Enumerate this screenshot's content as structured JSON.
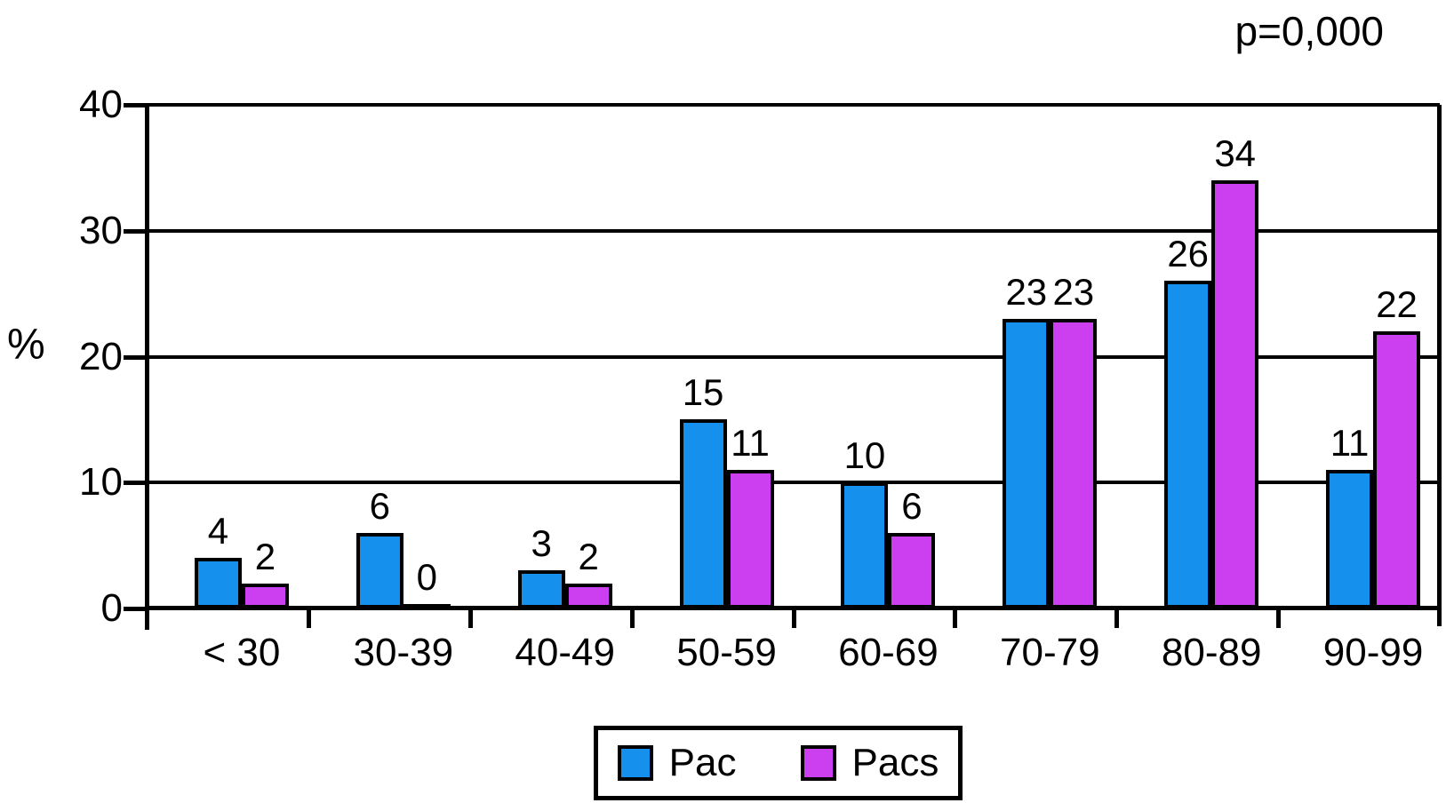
{
  "annotation": {
    "p_value": "p=0,000"
  },
  "y_axis": {
    "title": "%"
  },
  "legend": {
    "items": [
      {
        "label": "Pac",
        "color": "#1590EC"
      },
      {
        "label": "Pacs",
        "color": "#CB3FF0"
      }
    ]
  },
  "colors": {
    "pac": "#1590EC",
    "pacs": "#CB3FF0",
    "axis": "#000000",
    "background": "#ffffff"
  },
  "chart_data": {
    "type": "bar",
    "title": "",
    "xlabel": "",
    "ylabel": "%",
    "categories": [
      "< 30",
      "30-39",
      "40-49",
      "50-59",
      "60-69",
      "70-79",
      "80-89",
      "90-99"
    ],
    "series": [
      {
        "name": "Pac",
        "color": "#1590EC",
        "values": [
          4,
          6,
          3,
          15,
          10,
          23,
          26,
          11
        ]
      },
      {
        "name": "Pacs",
        "color": "#CB3FF0",
        "values": [
          2,
          0,
          2,
          11,
          6,
          23,
          34,
          22
        ]
      }
    ],
    "ylim": [
      0,
      40
    ],
    "yticks": [
      40,
      30,
      20,
      10,
      0
    ],
    "grid": true,
    "legend_position": "bottom",
    "annotation": "p=0,000",
    "value_labels": true
  }
}
